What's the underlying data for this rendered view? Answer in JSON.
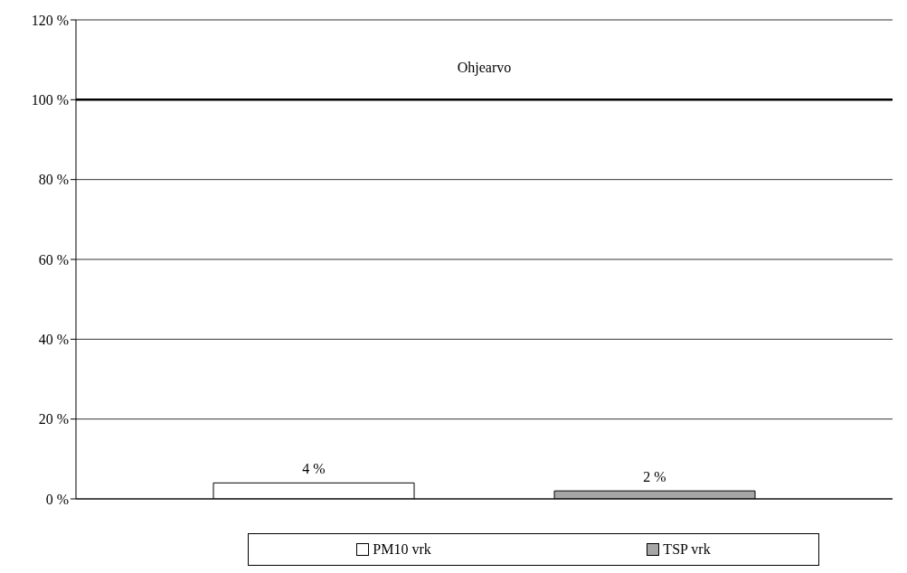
{
  "chart_data": {
    "type": "bar",
    "categories": [
      null
    ],
    "series": [
      {
        "name": "PM10 vrk",
        "color": "#ffffff",
        "values": [
          4
        ],
        "value_labels": [
          "4 %"
        ]
      },
      {
        "name": "TSP vrk",
        "color": "#a6a6a6",
        "values": [
          2
        ],
        "value_labels": [
          "2 %"
        ]
      }
    ],
    "ylim": [
      0,
      120
    ],
    "yticks": [
      {
        "value": 0,
        "label": "0 %"
      },
      {
        "value": 20,
        "label": "20 %"
      },
      {
        "value": 40,
        "label": "40 %"
      },
      {
        "value": 60,
        "label": "60 %"
      },
      {
        "value": 80,
        "label": "80 %"
      },
      {
        "value": 100,
        "label": "100 %"
      },
      {
        "value": 120,
        "label": "120 %"
      }
    ],
    "ref_lines": [
      {
        "axis": "y",
        "value": 100,
        "label": "Ohjearvo",
        "color": "#000000"
      }
    ],
    "grid": "y",
    "legend": "bottom"
  }
}
